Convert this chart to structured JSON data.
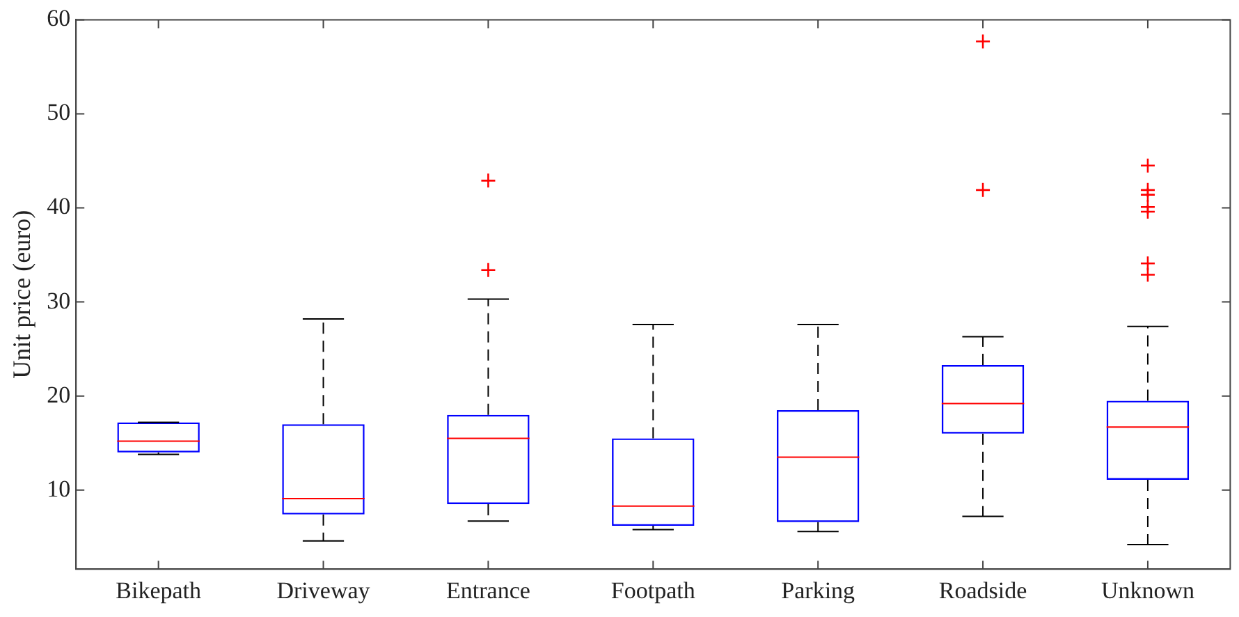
{
  "chart_data": {
    "type": "box",
    "ylabel": "Unit price (euro)",
    "categories": [
      "Bikepath",
      "Driveway",
      "Entrance",
      "Footpath",
      "Parking",
      "Roadside",
      "Unknown"
    ],
    "ylim": [
      1.6,
      60
    ],
    "yticks": [
      10,
      20,
      30,
      40,
      50,
      60
    ],
    "grid": false,
    "legend": false,
    "marker": "cross",
    "series": [
      {
        "color": "#0000ff",
        "boxes": [
          {
            "low": 13.8,
            "q1": 14.0,
            "median": 15.2,
            "q3": 17.2,
            "high": 17.2
          },
          {
            "low": 4.6,
            "q1": 7.4,
            "median": 9.1,
            "q3": 17.0,
            "high": 28.2
          },
          {
            "low": 6.7,
            "q1": 8.5,
            "median": 15.5,
            "q3": 18.0,
            "high": 30.3,
            "outliers": [
              33.4,
              42.9
            ]
          },
          {
            "low": 5.8,
            "q1": 6.2,
            "median": 8.3,
            "q3": 15.5,
            "high": 27.6
          },
          {
            "low": 5.6,
            "q1": 6.6,
            "median": 13.5,
            "q3": 18.5,
            "high": 27.6
          },
          {
            "low": 7.2,
            "q1": 16.0,
            "median": 19.2,
            "q3": 23.3,
            "high": 26.3,
            "outliers": [
              41.9,
              57.7
            ]
          },
          {
            "low": 4.2,
            "q1": 11.1,
            "median": 16.7,
            "q3": 19.5,
            "high": 27.4,
            "outliers": [
              32.9,
              34.1,
              39.6,
              40.1,
              41.4,
              41.9,
              44.5
            ]
          }
        ]
      }
    ]
  }
}
